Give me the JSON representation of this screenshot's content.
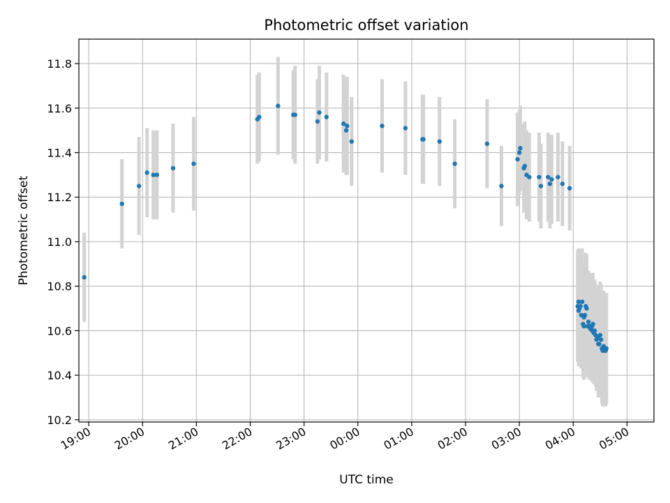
{
  "chart_data": {
    "type": "scatter",
    "title": "Photometric offset variation",
    "xlabel": "UTC time",
    "ylabel": "Photometric offset",
    "xlim": [
      "18:49",
      "05:30"
    ],
    "ylim": [
      10.19,
      11.91
    ],
    "x_ticks": [
      "19:00",
      "20:00",
      "21:00",
      "22:00",
      "23:00",
      "00:00",
      "01:00",
      "02:00",
      "03:00",
      "04:00",
      "05:00"
    ],
    "y_ticks": [
      "10.2",
      "10.4",
      "10.6",
      "10.8",
      "11.0",
      "11.2",
      "11.4",
      "11.6",
      "11.8"
    ],
    "grid": true,
    "point_color": "#1f77b4",
    "errorbar_color": "#d3d3d3",
    "series": [
      {
        "x": [
          "18:55",
          "19:37",
          "19:56",
          "20:05",
          "20:12",
          "20:16",
          "20:34",
          "20:57",
          "22:08",
          "22:10",
          "22:31",
          "22:48",
          "22:50",
          "23:15",
          "23:17",
          "23:25",
          "23:44",
          "23:47",
          "23:48",
          "23:53",
          "00:27",
          "00:53",
          "01:12",
          "01:13",
          "01:31",
          "01:48",
          "02:24",
          "02:40",
          "02:58",
          "03:00",
          "03:01",
          "03:05",
          "03:06",
          "03:08",
          "03:11",
          "03:22",
          "03:24",
          "03:32",
          "03:34",
          "03:36",
          "03:43",
          "03:48",
          "03:56",
          "04:05",
          "04:06",
          "04:06",
          "04:07",
          "04:08",
          "04:09",
          "04:10",
          "04:11",
          "04:12",
          "04:12",
          "04:13",
          "04:14",
          "04:15",
          "04:16",
          "04:17",
          "04:18",
          "04:18",
          "04:19",
          "04:20",
          "04:21",
          "04:21",
          "04:22",
          "04:23",
          "04:24",
          "04:25",
          "04:26",
          "04:27",
          "04:28",
          "04:29",
          "04:30",
          "04:31",
          "04:32",
          "04:33",
          "04:34",
          "04:35",
          "04:36",
          "04:37"
        ],
        "y": [
          10.84,
          11.17,
          11.25,
          11.31,
          11.3,
          11.3,
          11.33,
          11.35,
          11.55,
          11.56,
          11.61,
          11.57,
          11.57,
          11.54,
          11.58,
          11.56,
          11.53,
          11.5,
          11.52,
          11.45,
          11.52,
          11.51,
          11.46,
          11.46,
          11.45,
          11.35,
          11.44,
          11.25,
          11.37,
          11.4,
          11.42,
          11.33,
          11.34,
          11.3,
          11.29,
          11.29,
          11.25,
          11.29,
          11.26,
          11.28,
          11.29,
          11.26,
          11.24,
          10.71,
          10.69,
          10.73,
          10.7,
          10.71,
          10.67,
          10.73,
          10.63,
          10.66,
          10.62,
          10.67,
          10.71,
          10.7,
          10.62,
          10.64,
          10.62,
          10.62,
          10.61,
          10.61,
          10.62,
          10.6,
          10.63,
          10.59,
          10.6,
          10.58,
          10.56,
          10.57,
          10.54,
          10.54,
          10.58,
          10.56,
          10.52,
          10.51,
          10.53,
          10.52,
          10.51,
          10.52
        ],
        "err": [
          0.2,
          0.2,
          0.22,
          0.2,
          0.2,
          0.2,
          0.2,
          0.21,
          0.2,
          0.2,
          0.22,
          0.2,
          0.22,
          0.19,
          0.21,
          0.2,
          0.22,
          0.2,
          0.22,
          0.2,
          0.21,
          0.21,
          0.2,
          0.2,
          0.2,
          0.2,
          0.2,
          0.18,
          0.21,
          0.19,
          0.19,
          0.2,
          0.2,
          0.2,
          0.2,
          0.2,
          0.19,
          0.2,
          0.2,
          0.2,
          0.2,
          0.19,
          0.19,
          0.25,
          0.25,
          0.24,
          0.24,
          0.25,
          0.24,
          0.24,
          0.24,
          0.24,
          0.24,
          0.24,
          0.24,
          0.24,
          0.23,
          0.23,
          0.24,
          0.24,
          0.23,
          0.23,
          0.23,
          0.23,
          0.23,
          0.23,
          0.23,
          0.23,
          0.23,
          0.23,
          0.24,
          0.24,
          0.24,
          0.25,
          0.25,
          0.25,
          0.25,
          0.25,
          0.25,
          0.25
        ]
      }
    ]
  }
}
